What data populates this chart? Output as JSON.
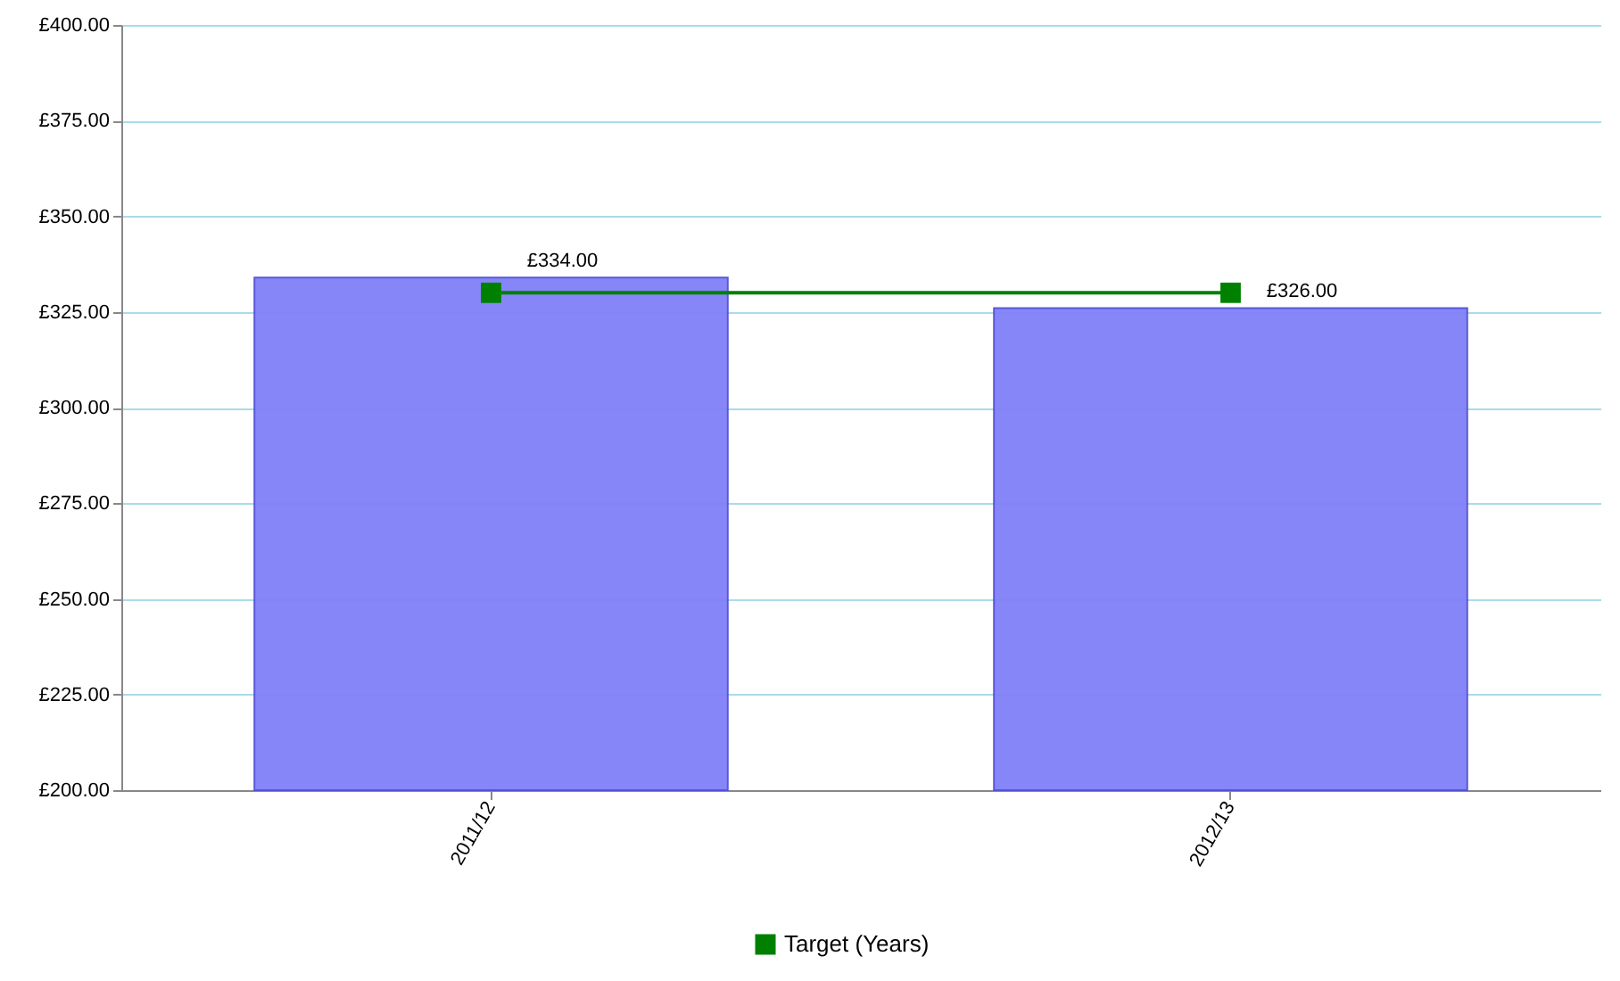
{
  "chart_data": {
    "type": "bar",
    "categories": [
      "2011/12",
      "2012/13"
    ],
    "series": [
      {
        "color": "#8080f8",
        "values": [
          334,
          326
        ],
        "value_labels": [
          "£334.00",
          "£326.00"
        ]
      },
      {
        "type": "line",
        "name": "Target (Years)",
        "color": "#008000",
        "values": [
          330,
          330
        ],
        "marker": "square"
      }
    ],
    "ylim": [
      200,
      400
    ],
    "yticks": [
      {
        "value": 200,
        "label": "£200.00"
      },
      {
        "value": 225,
        "label": "£225.00"
      },
      {
        "value": 250,
        "label": "£250.00"
      },
      {
        "value": 275,
        "label": "£275.00"
      },
      {
        "value": 300,
        "label": "£300.00"
      },
      {
        "value": 325,
        "label": "£325.00"
      },
      {
        "value": 350,
        "label": "£350.00"
      },
      {
        "value": 375,
        "label": "£375.00"
      },
      {
        "value": 400,
        "label": "£400.00"
      }
    ],
    "grid": "y",
    "legend": "bottom"
  }
}
